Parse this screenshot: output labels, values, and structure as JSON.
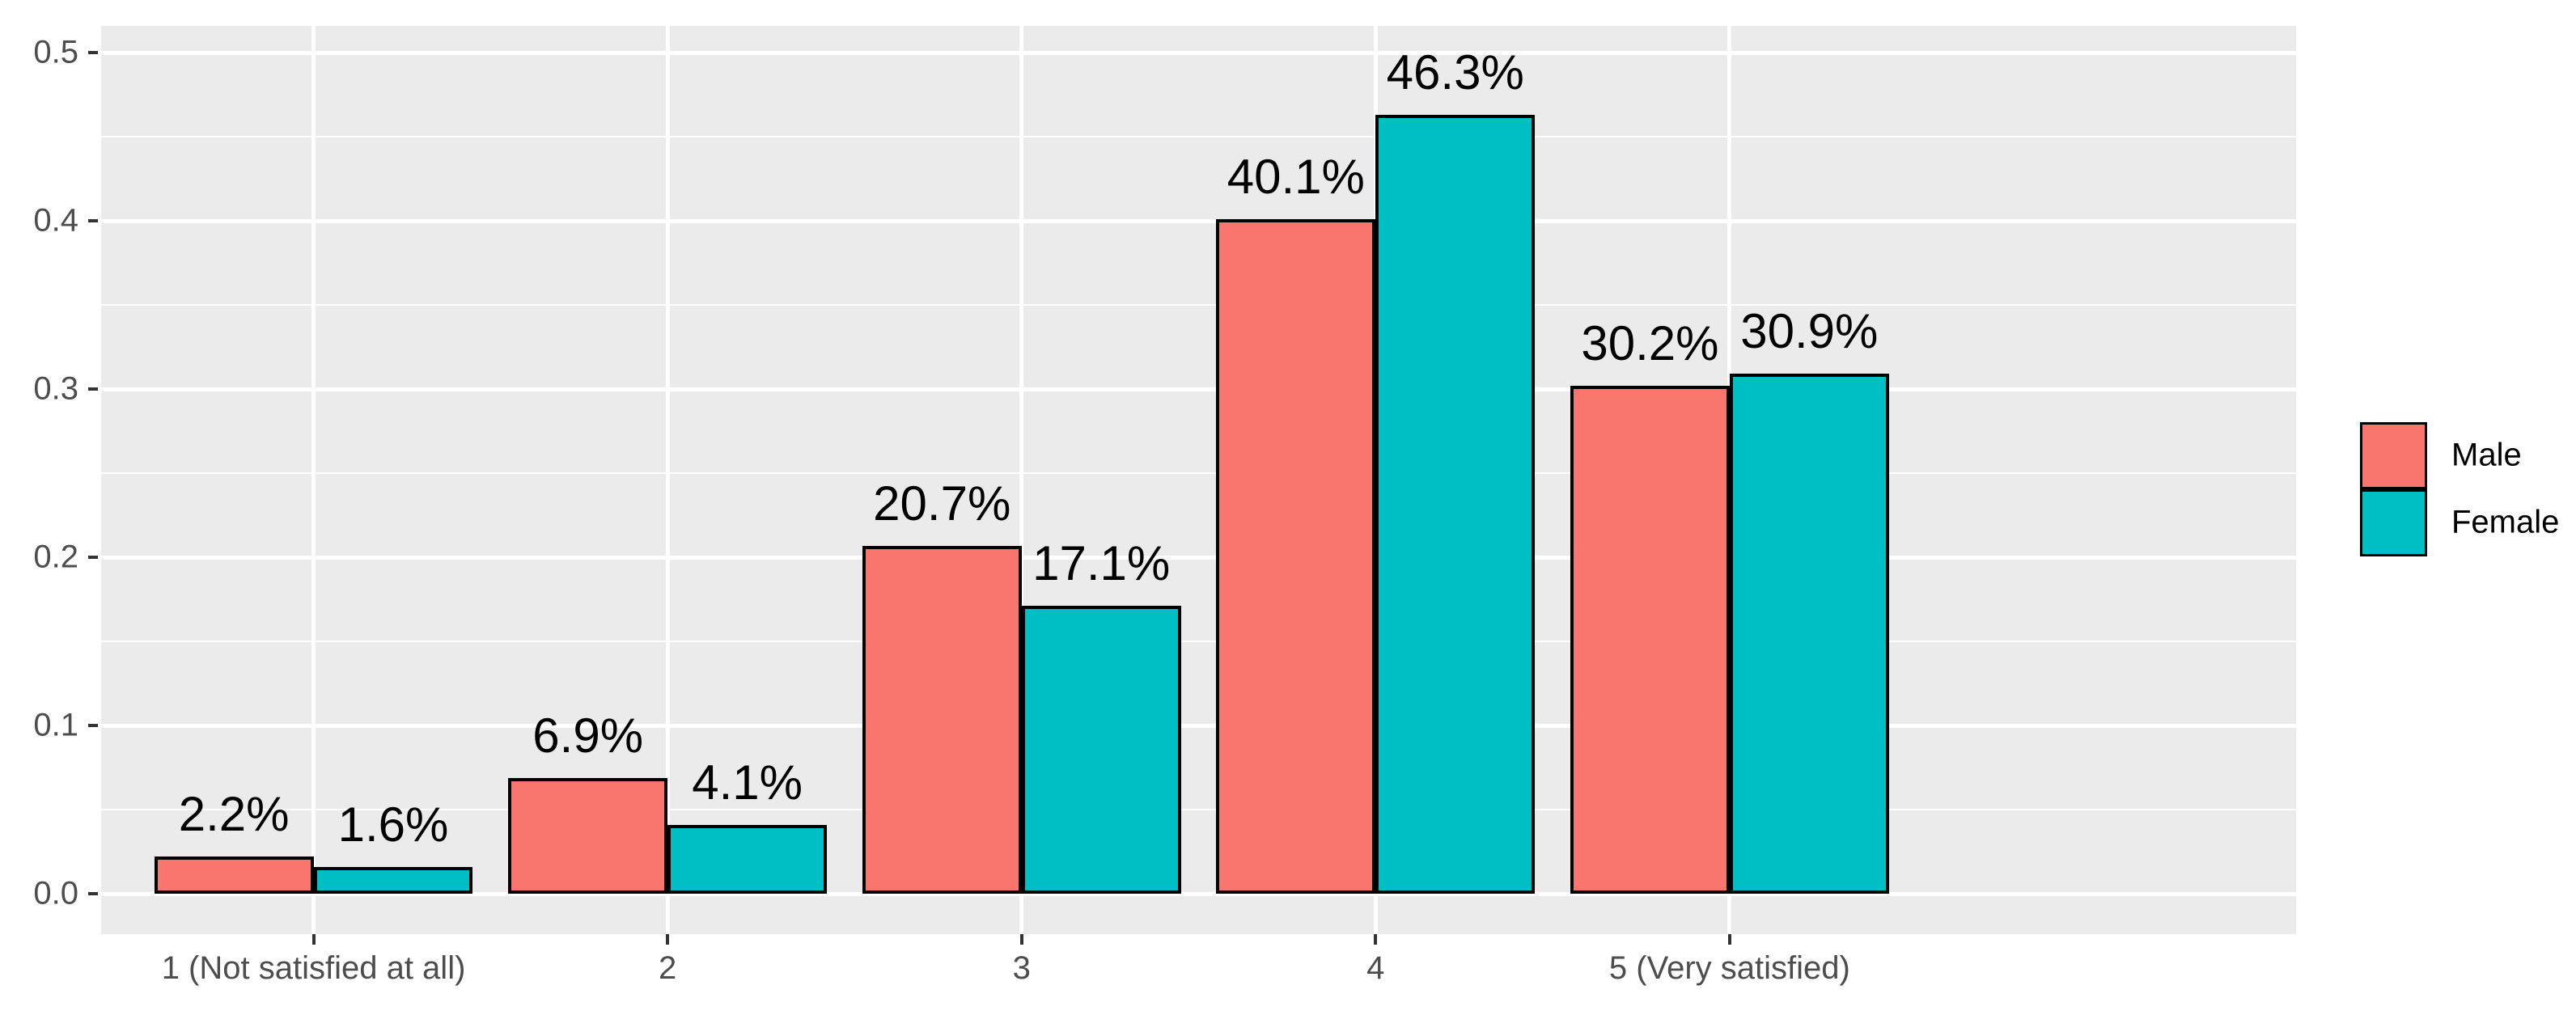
{
  "chart_data": {
    "type": "bar",
    "title": "",
    "xlabel": "",
    "ylabel": "",
    "categories": [
      "1 (Not satisfied at all)",
      "2",
      "3",
      "4",
      "5 (Very satisfied)"
    ],
    "series": [
      {
        "name": "Male",
        "color": "#F8766D",
        "values": [
          0.022,
          0.069,
          0.207,
          0.401,
          0.302
        ],
        "labels": [
          "2.2%",
          "6.9%",
          "20.7%",
          "40.1%",
          "30.2%"
        ]
      },
      {
        "name": "Female",
        "color": "#00BFC4",
        "values": [
          0.016,
          0.041,
          0.171,
          0.463,
          0.309
        ],
        "labels": [
          "1.6%",
          "4.1%",
          "17.1%",
          "46.3%",
          "30.9%"
        ]
      }
    ],
    "y_ticks": [
      {
        "label": "0.0",
        "value": 0.0
      },
      {
        "label": "0.1",
        "value": 0.1
      },
      {
        "label": "0.2",
        "value": 0.2
      },
      {
        "label": "0.3",
        "value": 0.3
      },
      {
        "label": "0.4",
        "value": 0.4
      },
      {
        "label": "0.5",
        "value": 0.5
      }
    ],
    "ylim": [
      -0.024,
      0.516
    ],
    "minor_grid_step": 0.05,
    "grid": true,
    "legend_position": "right"
  },
  "colors": {
    "male_bar": "#F8766D",
    "female_bar": "#00BFC4",
    "panel_background": "#EBEBEB",
    "gridline": "#FFFFFF",
    "bar_border": "#000000",
    "axis_text": "#4D4D4D",
    "tick_mark": "#333333",
    "data_label": "#000000",
    "legend_text": "#000000"
  }
}
